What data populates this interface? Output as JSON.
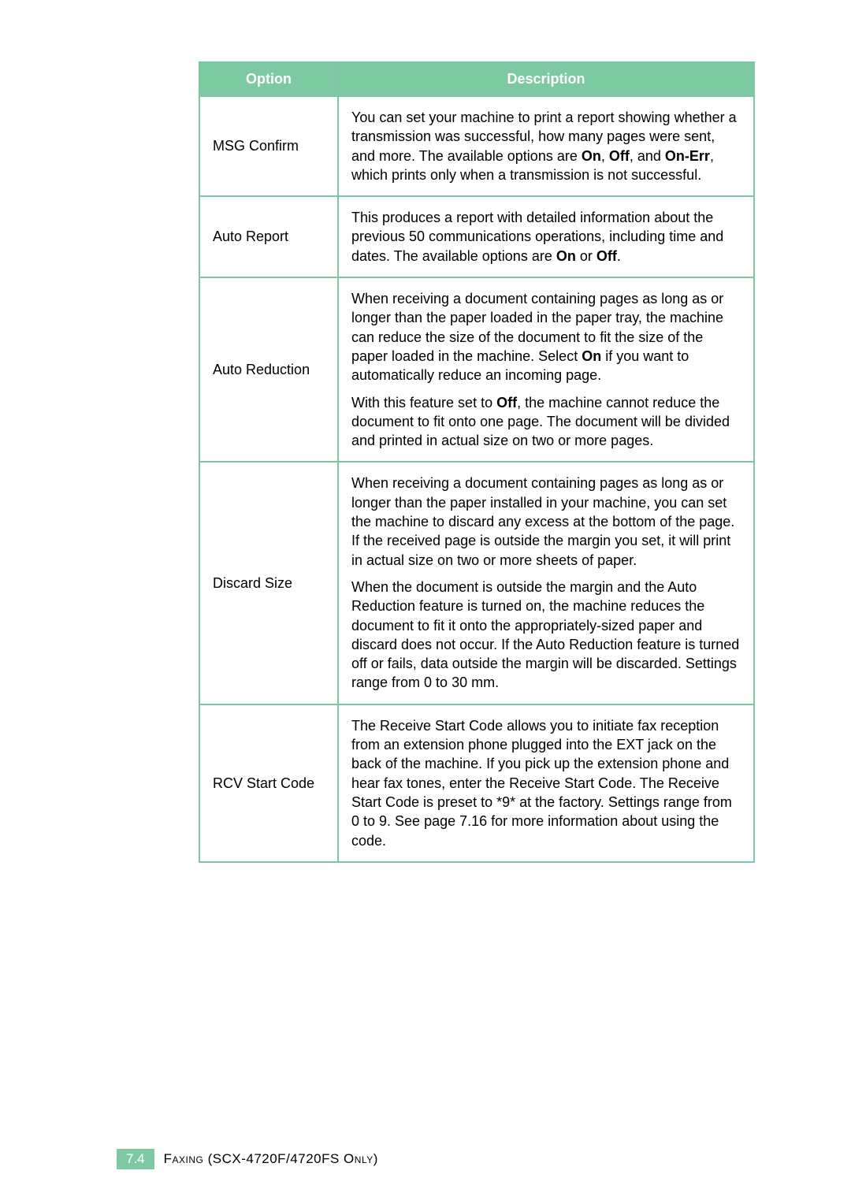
{
  "colors": {
    "header_bg": "#7cc9a2",
    "header_fg": "#ffffff",
    "border": "#7cc6a1",
    "body_text": "#000000",
    "footer_badge_bg": "#7cc9a2",
    "footer_badge_fg": "#ffffff",
    "footer_text": "#000000",
    "page_bg": "#ffffff"
  },
  "table": {
    "headers": {
      "option": "Option",
      "description": "Description"
    },
    "rows": [
      {
        "option": "MSG Confirm",
        "desc_html": "You can set your machine to print a report showing whether a transmission was successful, how many pages were sent, and more. The available options are <b>On</b>, <b>Off</b>, and <b>On-Err</b>, which prints only when a transmission is not successful."
      },
      {
        "option": "Auto Report",
        "desc_html": "This produces a report with detailed information about the previous 50 communications operations, including time and dates. The available options are <b>On</b> or <b>Off</b>."
      },
      {
        "option": "Auto Reduction",
        "desc_html": "<p class=\"para\">When receiving a document containing pages as long as or longer than the paper loaded in the paper tray, the machine can reduce the size of the document to fit the size of the paper loaded in the machine. Select <b>On</b> if you want to automatically reduce an incoming page.</p><p class=\"para\">With this feature set to <b>Off</b>, the machine cannot reduce the document to fit onto one page. The document will be divided and printed in actual size on two or more pages.</p>"
      },
      {
        "option": "Discard Size",
        "desc_html": "<p class=\"para\">When receiving a document containing pages as long as or longer than the paper installed in your machine, you can set the machine to discard any excess at the bottom of the page. If the received page is outside the margin you set, it will print in actual size on two or more sheets of paper.</p><p class=\"para\">When the document is outside the margin and the Auto Reduction feature is turned on, the machine reduces the document to fit it onto the appropriately-sized paper and discard does not occur. If the Auto Reduction feature is turned off or fails, data outside the margin will be discarded. Settings range from 0 to 30 mm.</p>"
      },
      {
        "option": "RCV Start Code",
        "desc_html": "The Receive Start Code allows you to initiate fax reception from an extension phone plugged into the EXT jack on the back of the machine. If you pick up the extension phone and hear fax tones, enter the Receive Start Code. The Receive Start Code is preset to *9* at the factory. Settings range from 0 to 9. See page 7.16 for more information about using the code."
      }
    ]
  },
  "footer": {
    "badge": "7.4",
    "text": "Faxing (SCX-4720F/4720FS Only)"
  }
}
